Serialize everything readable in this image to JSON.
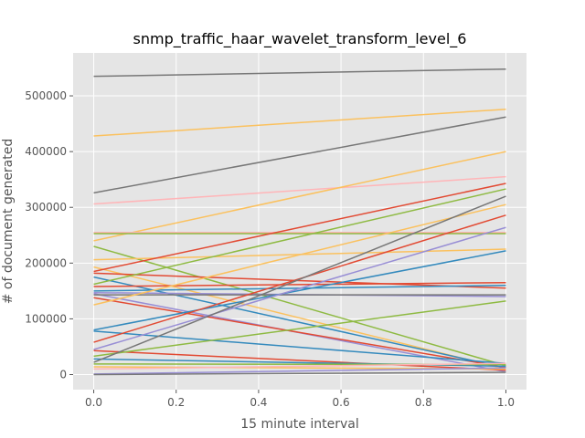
{
  "chart_data": {
    "type": "line",
    "title": "snmp_traffic_haar_wavelet_transform_level_6",
    "xlabel": "15 minute interval",
    "ylabel": "# of document generated",
    "xlim": [
      -0.05,
      1.05
    ],
    "ylim": [
      -27000,
      577000
    ],
    "x_ticks": [
      0.0,
      0.2,
      0.4,
      0.6,
      0.8,
      1.0
    ],
    "x_tick_labels": [
      "0.0",
      "0.2",
      "0.4",
      "0.6",
      "0.8",
      "1.0"
    ],
    "y_ticks": [
      0,
      100000,
      200000,
      300000,
      400000,
      500000
    ],
    "y_tick_labels": [
      "0",
      "100000",
      "200000",
      "300000",
      "400000",
      "500000"
    ],
    "grid": true,
    "background": "#e5e5e5",
    "x": [
      0,
      1
    ],
    "series": [
      {
        "values": [
          535000,
          548000
        ],
        "color": "#777777"
      },
      {
        "values": [
          428000,
          476000
        ],
        "color": "#fbc15e"
      },
      {
        "values": [
          326000,
          462000
        ],
        "color": "#777777"
      },
      {
        "values": [
          306000,
          355000
        ],
        "color": "#ffb5b8"
      },
      {
        "values": [
          240000,
          400000
        ],
        "color": "#fbc15e"
      },
      {
        "values": [
          255000,
          255000
        ],
        "color": "#ffb5b8"
      },
      {
        "values": [
          253000,
          253000
        ],
        "color": "#8eba42"
      },
      {
        "values": [
          230000,
          16000
        ],
        "color": "#8eba42"
      },
      {
        "values": [
          206000,
          225000
        ],
        "color": "#fbc15e"
      },
      {
        "values": [
          193000,
          10000
        ],
        "color": "#fbc15e"
      },
      {
        "values": [
          185000,
          343000
        ],
        "color": "#e24a33"
      },
      {
        "values": [
          182000,
          155000
        ],
        "color": "#e24a33"
      },
      {
        "values": [
          175000,
          12000
        ],
        "color": "#348abd"
      },
      {
        "values": [
          162000,
          333000
        ],
        "color": "#8eba42"
      },
      {
        "values": [
          158000,
          165000
        ],
        "color": "#e24a33"
      },
      {
        "values": [
          150000,
          160000
        ],
        "color": "#348abd"
      },
      {
        "values": [
          147000,
          140000
        ],
        "color": "#988ed5"
      },
      {
        "values": [
          145000,
          5000
        ],
        "color": "#988ed5"
      },
      {
        "values": [
          143000,
          143000
        ],
        "color": "#777777"
      },
      {
        "values": [
          138000,
          13000
        ],
        "color": "#e24a33"
      },
      {
        "values": [
          125000,
          305000
        ],
        "color": "#fbc15e"
      },
      {
        "values": [
          80000,
          222000
        ],
        "color": "#348abd"
      },
      {
        "values": [
          78000,
          20000
        ],
        "color": "#348abd"
      },
      {
        "values": [
          58000,
          286000
        ],
        "color": "#e24a33"
      },
      {
        "values": [
          45000,
          264000
        ],
        "color": "#988ed5"
      },
      {
        "values": [
          43000,
          8000
        ],
        "color": "#e24a33"
      },
      {
        "values": [
          33000,
          132000
        ],
        "color": "#8eba42"
      },
      {
        "values": [
          28000,
          15000
        ],
        "color": "#348abd"
      },
      {
        "values": [
          22000,
          320000
        ],
        "color": "#777777"
      },
      {
        "values": [
          19000,
          18000
        ],
        "color": "#8eba42"
      },
      {
        "values": [
          14000,
          10000
        ],
        "color": "#fbc15e"
      },
      {
        "values": [
          10000,
          20000
        ],
        "color": "#ffb5b8"
      },
      {
        "values": [
          1000,
          12000
        ],
        "color": "#988ed5"
      },
      {
        "values": [
          0,
          4000
        ],
        "color": "#777777"
      }
    ]
  }
}
